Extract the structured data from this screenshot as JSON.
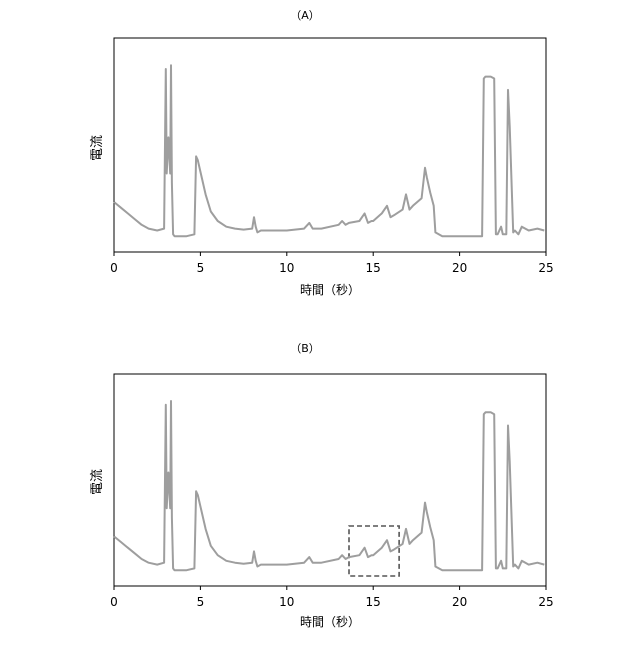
{
  "chart_data": [
    {
      "type": "line",
      "title": "（A）",
      "xlabel": "時間（秒）",
      "ylabel": "電流",
      "xlim": [
        0,
        25
      ],
      "x_ticks": [
        0,
        5,
        10,
        15,
        20,
        25
      ],
      "y_ticks": [],
      "grid": false,
      "series": [
        {
          "color": "#9e9e9e",
          "x": [
            0,
            0.4,
            0.8,
            1.2,
            1.6,
            2.0,
            2.5,
            2.9,
            3.0,
            3.05,
            3.15,
            3.25,
            3.3,
            3.35,
            3.42,
            3.5,
            3.6,
            4.2,
            4.65,
            4.75,
            4.85,
            5.0,
            5.3,
            5.6,
            6.0,
            6.5,
            7.0,
            7.5,
            8.0,
            8.1,
            8.2,
            8.3,
            8.5,
            9.0,
            10.0,
            11.0,
            11.3,
            11.5,
            11.7,
            12.0,
            13.0,
            13.2,
            13.4,
            13.6,
            14.2,
            14.5,
            14.7,
            14.9,
            15.0,
            15.5,
            15.8,
            16.0,
            16.2,
            16.7,
            16.9,
            17.1,
            17.3,
            17.8,
            18.0,
            18.1,
            18.3,
            18.5,
            18.6,
            19.0,
            20.0,
            21.0,
            21.3,
            21.4,
            21.5,
            21.8,
            22.0,
            22.1,
            22.2,
            22.4,
            22.5,
            22.7,
            22.8,
            22.9,
            23.1,
            23.2,
            23.4,
            23.6,
            24.0,
            24.5,
            24.9
          ],
          "y": [
            0.2,
            0.17,
            0.14,
            0.11,
            0.08,
            0.06,
            0.05,
            0.06,
            0.9,
            0.35,
            0.54,
            0.35,
            0.92,
            0.3,
            0.03,
            0.02,
            0.02,
            0.02,
            0.03,
            0.44,
            0.42,
            0.36,
            0.24,
            0.15,
            0.1,
            0.07,
            0.06,
            0.055,
            0.06,
            0.12,
            0.07,
            0.04,
            0.05,
            0.05,
            0.05,
            0.06,
            0.09,
            0.06,
            0.06,
            0.06,
            0.08,
            0.1,
            0.08,
            0.09,
            0.1,
            0.14,
            0.09,
            0.1,
            0.1,
            0.14,
            0.18,
            0.12,
            0.13,
            0.16,
            0.24,
            0.16,
            0.18,
            0.22,
            0.38,
            0.33,
            0.25,
            0.18,
            0.04,
            0.02,
            0.02,
            0.02,
            0.02,
            0.85,
            0.86,
            0.86,
            0.85,
            0.03,
            0.03,
            0.07,
            0.03,
            0.03,
            0.79,
            0.6,
            0.04,
            0.05,
            0.03,
            0.07,
            0.05,
            0.06,
            0.05
          ]
        }
      ]
    },
    {
      "type": "line",
      "title": "（B）",
      "xlabel": "時間（秒）",
      "ylabel": "電流",
      "xlim": [
        0,
        25
      ],
      "x_ticks": [
        0,
        5,
        10,
        15,
        20,
        25
      ],
      "y_ticks": [],
      "grid": false,
      "highlight": {
        "x_range": [
          13.6,
          16.5
        ],
        "style": "dashed"
      },
      "series": [
        {
          "color": "#9e9e9e",
          "x": [
            0,
            0.4,
            0.8,
            1.2,
            1.6,
            2.0,
            2.5,
            2.9,
            3.0,
            3.05,
            3.15,
            3.25,
            3.3,
            3.35,
            3.42,
            3.5,
            3.6,
            4.2,
            4.65,
            4.75,
            4.85,
            5.0,
            5.3,
            5.6,
            6.0,
            6.5,
            7.0,
            7.5,
            8.0,
            8.1,
            8.2,
            8.3,
            8.5,
            9.0,
            10.0,
            11.0,
            11.3,
            11.5,
            11.7,
            12.0,
            13.0,
            13.2,
            13.4,
            13.6,
            14.2,
            14.5,
            14.7,
            14.9,
            15.0,
            15.5,
            15.8,
            16.0,
            16.2,
            16.7,
            16.9,
            17.1,
            17.3,
            17.8,
            18.0,
            18.1,
            18.3,
            18.5,
            18.6,
            19.0,
            20.0,
            21.0,
            21.3,
            21.4,
            21.5,
            21.8,
            22.0,
            22.1,
            22.2,
            22.4,
            22.5,
            22.7,
            22.8,
            22.9,
            23.1,
            23.2,
            23.4,
            23.6,
            24.0,
            24.5,
            24.9
          ],
          "y": [
            0.2,
            0.17,
            0.14,
            0.11,
            0.08,
            0.06,
            0.05,
            0.06,
            0.9,
            0.35,
            0.54,
            0.35,
            0.92,
            0.3,
            0.03,
            0.02,
            0.02,
            0.02,
            0.03,
            0.44,
            0.42,
            0.36,
            0.24,
            0.15,
            0.1,
            0.07,
            0.06,
            0.055,
            0.06,
            0.12,
            0.07,
            0.04,
            0.05,
            0.05,
            0.05,
            0.06,
            0.09,
            0.06,
            0.06,
            0.06,
            0.08,
            0.1,
            0.08,
            0.09,
            0.1,
            0.14,
            0.09,
            0.1,
            0.1,
            0.14,
            0.18,
            0.12,
            0.13,
            0.16,
            0.24,
            0.16,
            0.18,
            0.22,
            0.38,
            0.33,
            0.25,
            0.18,
            0.04,
            0.02,
            0.02,
            0.02,
            0.02,
            0.85,
            0.86,
            0.86,
            0.85,
            0.03,
            0.03,
            0.07,
            0.03,
            0.03,
            0.79,
            0.6,
            0.04,
            0.05,
            0.03,
            0.07,
            0.05,
            0.06,
            0.05
          ]
        }
      ]
    }
  ]
}
